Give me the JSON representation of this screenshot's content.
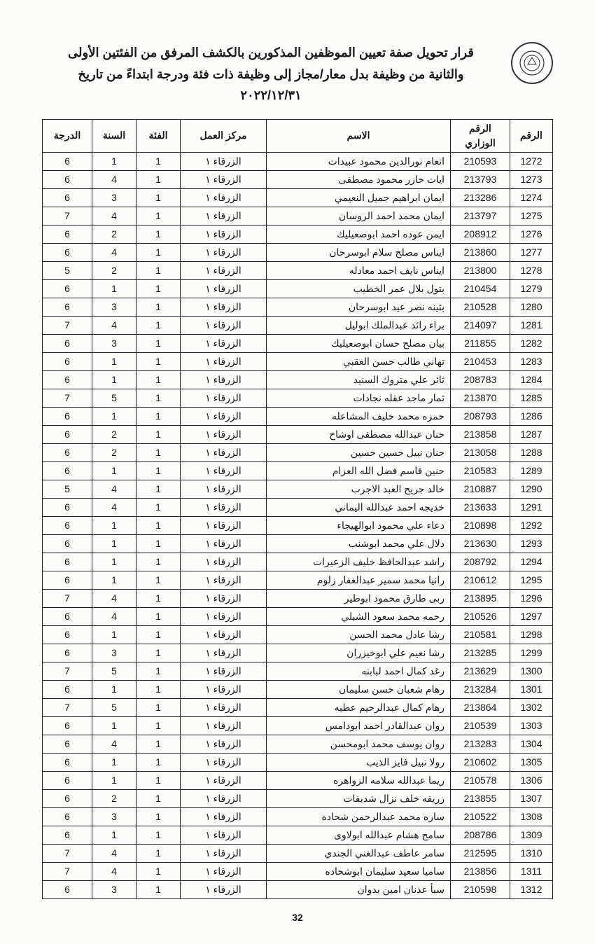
{
  "header": {
    "line1": "قرار تحويل صفة تعيين الموظفين المذكورين بالكشف المرفق من الفئتين الأولى",
    "line2": "والثانية من وظيفة بدل معار/مجاز إلى وظيفة ذات فئة ودرجة ابتداءً من تاريخ",
    "line3": "٢٠٢٢/١٢/٣١",
    "logo_label": "شعار"
  },
  "columns": {
    "seq": "الرقم",
    "ministerial": "الرقم الوزاري",
    "name": "الاسم",
    "workplace": "مركز العمل",
    "category": "الفئة",
    "year": "السنة",
    "grade": "الدرجة"
  },
  "rows": [
    {
      "seq": "1272",
      "min": "210593",
      "name": "انعام نورالدين محمود عبيدات",
      "work": "الزرقاء ١",
      "cat": "1",
      "year": "1",
      "grade": "6"
    },
    {
      "seq": "1273",
      "min": "213793",
      "name": "ايات خازر محمود مصطفى",
      "work": "الزرقاء ١",
      "cat": "1",
      "year": "4",
      "grade": "6"
    },
    {
      "seq": "1274",
      "min": "213286",
      "name": "ايمان ابراهيم جميل النعيمي",
      "work": "الزرقاء ١",
      "cat": "1",
      "year": "3",
      "grade": "6"
    },
    {
      "seq": "1275",
      "min": "213797",
      "name": "ايمان محمد احمد الروسان",
      "work": "الزرقاء ١",
      "cat": "1",
      "year": "4",
      "grade": "7"
    },
    {
      "seq": "1276",
      "min": "208912",
      "name": "ايمن عوده احمد ابوصعيليك",
      "work": "الزرقاء ١",
      "cat": "1",
      "year": "2",
      "grade": "6"
    },
    {
      "seq": "1277",
      "min": "213860",
      "name": "ايناس مصلح سلام ابوسرحان",
      "work": "الزرقاء ١",
      "cat": "1",
      "year": "4",
      "grade": "6"
    },
    {
      "seq": "1278",
      "min": "213800",
      "name": "ايناس نايف احمد معادله",
      "work": "الزرقاء ١",
      "cat": "1",
      "year": "2",
      "grade": "5"
    },
    {
      "seq": "1279",
      "min": "210454",
      "name": "بتول بلال عمر الخطيب",
      "work": "الزرقاء ١",
      "cat": "1",
      "year": "1",
      "grade": "6"
    },
    {
      "seq": "1280",
      "min": "210528",
      "name": "بثينه نصر عيد ابوسرحان",
      "work": "الزرقاء ١",
      "cat": "1",
      "year": "3",
      "grade": "6"
    },
    {
      "seq": "1281",
      "min": "214097",
      "name": "براء رائد عبدالملك ابوليل",
      "work": "الزرقاء ١",
      "cat": "1",
      "year": "4",
      "grade": "7"
    },
    {
      "seq": "1282",
      "min": "211855",
      "name": "بيان مصلح حسان ابوصعيليك",
      "work": "الزرقاء ١",
      "cat": "1",
      "year": "3",
      "grade": "6"
    },
    {
      "seq": "1283",
      "min": "210453",
      "name": "تهاني طالب حسن العقبي",
      "work": "الزرقاء ١",
      "cat": "1",
      "year": "1",
      "grade": "6"
    },
    {
      "seq": "1284",
      "min": "208783",
      "name": "ثائر علي متروك السنيد",
      "work": "الزرقاء ١",
      "cat": "1",
      "year": "1",
      "grade": "6"
    },
    {
      "seq": "1285",
      "min": "213870",
      "name": "ثمار ماجد عقله نجادات",
      "work": "الزرقاء ١",
      "cat": "1",
      "year": "5",
      "grade": "7"
    },
    {
      "seq": "1286",
      "min": "208793",
      "name": "حمزه محمد خليف المشاعله",
      "work": "الزرقاء ١",
      "cat": "1",
      "year": "1",
      "grade": "6"
    },
    {
      "seq": "1287",
      "min": "213858",
      "name": "حنان عبدالله مصطفى اوشاح",
      "work": "الزرقاء ١",
      "cat": "1",
      "year": "2",
      "grade": "6"
    },
    {
      "seq": "1288",
      "min": "213058",
      "name": "حنان نبيل حسين حسين",
      "work": "الزرقاء ١",
      "cat": "1",
      "year": "2",
      "grade": "6"
    },
    {
      "seq": "1289",
      "min": "210583",
      "name": "حنين قاسم فضل الله العزام",
      "work": "الزرقاء ١",
      "cat": "1",
      "year": "1",
      "grade": "6"
    },
    {
      "seq": "1290",
      "min": "210887",
      "name": "خالد جريح العبد الاجرب",
      "work": "الزرقاء ١",
      "cat": "1",
      "year": "4",
      "grade": "5"
    },
    {
      "seq": "1291",
      "min": "213633",
      "name": "خديجه احمد عبدالله اليماني",
      "work": "الزرقاء ١",
      "cat": "1",
      "year": "4",
      "grade": "6"
    },
    {
      "seq": "1292",
      "min": "210898",
      "name": "دعاء علي محمود ابوالهيجاء",
      "work": "الزرقاء ١",
      "cat": "1",
      "year": "1",
      "grade": "6"
    },
    {
      "seq": "1293",
      "min": "213630",
      "name": "دلال علي محمد ابوشنب",
      "work": "الزرقاء ١",
      "cat": "1",
      "year": "1",
      "grade": "6"
    },
    {
      "seq": "1294",
      "min": "208792",
      "name": "راشد عبدالحافظ خليف الزعيرات",
      "work": "الزرقاء ١",
      "cat": "1",
      "year": "1",
      "grade": "6"
    },
    {
      "seq": "1295",
      "min": "210612",
      "name": "رانيا محمد سمير عبدالغفار زلوم",
      "work": "الزرقاء ١",
      "cat": "1",
      "year": "1",
      "grade": "6"
    },
    {
      "seq": "1296",
      "min": "213895",
      "name": "ربى طارق محمود ابوطير",
      "work": "الزرقاء ١",
      "cat": "1",
      "year": "4",
      "grade": "7"
    },
    {
      "seq": "1297",
      "min": "210526",
      "name": "رحمه محمد سعود الشبلي",
      "work": "الزرقاء ١",
      "cat": "1",
      "year": "4",
      "grade": "6"
    },
    {
      "seq": "1298",
      "min": "210581",
      "name": "رشا عادل محمد الحسن",
      "work": "الزرقاء ١",
      "cat": "1",
      "year": "1",
      "grade": "6"
    },
    {
      "seq": "1299",
      "min": "213285",
      "name": "رشا نعيم علي ابوخيزران",
      "work": "الزرقاء ١",
      "cat": "1",
      "year": "3",
      "grade": "6"
    },
    {
      "seq": "1300",
      "min": "213629",
      "name": "رغد كمال احمد لبابنه",
      "work": "الزرقاء ١",
      "cat": "1",
      "year": "5",
      "grade": "7"
    },
    {
      "seq": "1301",
      "min": "213284",
      "name": "رهام شعبان حسن سليمان",
      "work": "الزرقاء ١",
      "cat": "1",
      "year": "1",
      "grade": "6"
    },
    {
      "seq": "1302",
      "min": "213864",
      "name": "رهام كمال عبدالرحيم عطيه",
      "work": "الزرقاء ١",
      "cat": "1",
      "year": "5",
      "grade": "7"
    },
    {
      "seq": "1303",
      "min": "210539",
      "name": "روان عبدالقادر احمد ابودامس",
      "work": "الزرقاء ١",
      "cat": "1",
      "year": "1",
      "grade": "6"
    },
    {
      "seq": "1304",
      "min": "213283",
      "name": "روان يوسف محمد ابومحسن",
      "work": "الزرقاء ١",
      "cat": "1",
      "year": "4",
      "grade": "6"
    },
    {
      "seq": "1305",
      "min": "210602",
      "name": "رولا نبيل فايز الذيب",
      "work": "الزرقاء ١",
      "cat": "1",
      "year": "1",
      "grade": "6"
    },
    {
      "seq": "1306",
      "min": "210578",
      "name": "ريما عبدالله سلامه الزواهره",
      "work": "الزرقاء ١",
      "cat": "1",
      "year": "1",
      "grade": "6"
    },
    {
      "seq": "1307",
      "min": "213855",
      "name": "زريفه خلف نزال شديفات",
      "work": "الزرقاء ١",
      "cat": "1",
      "year": "2",
      "grade": "6"
    },
    {
      "seq": "1308",
      "min": "210522",
      "name": "ساره محمد عبدالرحمن شحاده",
      "work": "الزرقاء ١",
      "cat": "1",
      "year": "3",
      "grade": "6"
    },
    {
      "seq": "1309",
      "min": "208786",
      "name": "سامح هشام عبدالله ابولاوى",
      "work": "الزرقاء ١",
      "cat": "1",
      "year": "1",
      "grade": "6"
    },
    {
      "seq": "1310",
      "min": "212595",
      "name": "سامر عاطف عبدالغني الجندي",
      "work": "الزرقاء ١",
      "cat": "1",
      "year": "4",
      "grade": "7"
    },
    {
      "seq": "1311",
      "min": "213856",
      "name": "ساميا سعيد سليمان ابوشحاده",
      "work": "الزرقاء ١",
      "cat": "1",
      "year": "4",
      "grade": "7"
    },
    {
      "seq": "1312",
      "min": "210598",
      "name": "سبأ عدنان امين بدوان",
      "work": "الزرقاء ١",
      "cat": "1",
      "year": "3",
      "grade": "6"
    }
  ],
  "page_number": "32"
}
